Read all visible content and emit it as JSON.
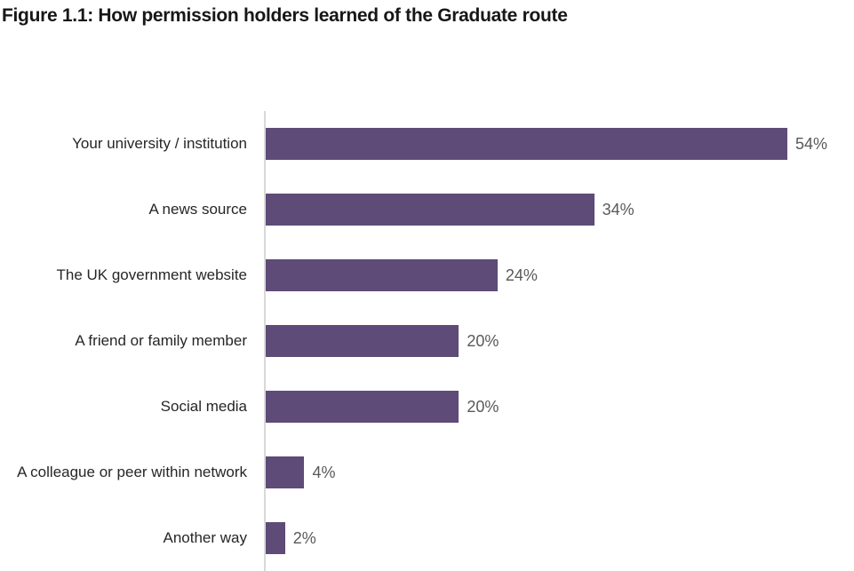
{
  "title": "Figure 1.1: How permission holders learned of the Graduate route",
  "colors": {
    "bar": "#5e4b77",
    "axis": "#d9d9d9",
    "value_label": "#595959",
    "category_label": "#262626",
    "title": "#171717"
  },
  "chart_data": {
    "type": "bar",
    "orientation": "horizontal",
    "title": "Figure 1.1: How permission holders learned of the Graduate route",
    "categories": [
      "Your university / institution",
      "A news source",
      "The UK government website",
      "A friend or family member",
      "Social media",
      "A colleague or peer within network",
      "Another way"
    ],
    "values": [
      54,
      34,
      24,
      20,
      20,
      4,
      2
    ],
    "value_labels": [
      "54%",
      "34%",
      "24%",
      "20%",
      "20%",
      "4%",
      "2%"
    ],
    "xlabel": "",
    "ylabel": "",
    "xlim": [
      0,
      59
    ],
    "grid": false,
    "legend": "none",
    "value_labels_position": "end-of-bar"
  }
}
